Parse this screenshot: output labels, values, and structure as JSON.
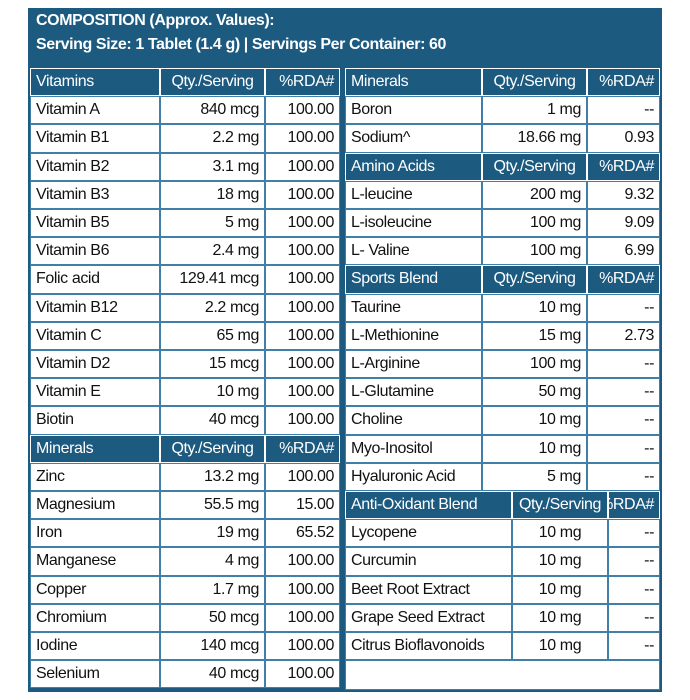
{
  "title": {
    "line1": "COMPOSITION (Approx. Values):",
    "line2": "Serving Size: 1 Tablet (1.4 g) | Servings Per Container: 60"
  },
  "left": [
    {
      "header": [
        "Vitamins",
        "Qty./Serving",
        "%RDA#"
      ],
      "rows": [
        [
          "Vitamin A",
          "840 mcg",
          "100.00"
        ],
        [
          "Vitamin B1",
          "2.2 mg",
          "100.00"
        ],
        [
          "Vitamin B2",
          "3.1 mg",
          "100.00"
        ],
        [
          "Vitamin B3",
          "18 mg",
          "100.00"
        ],
        [
          "Vitamin B5",
          "5 mg",
          "100.00"
        ],
        [
          "Vitamin B6",
          "2.4 mg",
          "100.00"
        ],
        [
          "Folic acid",
          "129.41 mcg",
          "100.00"
        ],
        [
          "Vitamin B12",
          "2.2 mcg",
          "100.00"
        ],
        [
          "Vitamin C",
          "65 mg",
          "100.00"
        ],
        [
          "Vitamin D2",
          "15 mcg",
          "100.00"
        ],
        [
          "Vitamin E",
          "10 mg",
          "100.00"
        ],
        [
          "Biotin",
          "40 mcg",
          "100.00"
        ]
      ]
    },
    {
      "header": [
        "Minerals",
        "Qty./Serving",
        "%RDA#"
      ],
      "rows": [
        [
          "Zinc",
          "13.2 mg",
          "100.00"
        ],
        [
          "Magnesium",
          "55.5 mg",
          "15.00"
        ],
        [
          "Iron",
          "19 mg",
          "65.52"
        ],
        [
          "Manganese",
          "4 mg",
          "100.00"
        ],
        [
          "Copper",
          "1.7 mg",
          "100.00"
        ],
        [
          "Chromium",
          "50 mcg",
          "100.00"
        ],
        [
          "Iodine",
          "140 mcg",
          "100.00"
        ],
        [
          "Selenium",
          "40 mcg",
          "100.00"
        ]
      ]
    }
  ],
  "right": [
    {
      "header": [
        "Minerals",
        "Qty./Serving",
        "%RDA#"
      ],
      "rows": [
        [
          "Boron",
          "1 mg",
          "--"
        ],
        [
          "Sodium^",
          "18.66 mg",
          "0.93"
        ]
      ]
    },
    {
      "header": [
        "Amino Acids",
        "Qty./Serving",
        "%RDA#"
      ],
      "rows": [
        [
          "L-leucine",
          "200 mg",
          "9.32"
        ],
        [
          "L-isoleucine",
          "100 mg",
          "9.09"
        ],
        [
          "L- Valine",
          "100 mg",
          "6.99"
        ]
      ]
    },
    {
      "header": [
        "Sports Blend",
        "Qty./Serving",
        "%RDA#"
      ],
      "rows": [
        [
          "Taurine",
          "10 mg",
          "--"
        ],
        [
          "L-Methionine",
          "15 mg",
          "2.73"
        ],
        [
          "L-Arginine",
          "100 mg",
          "--"
        ],
        [
          "L-Glutamine",
          "50 mg",
          "--"
        ],
        [
          "Choline",
          "10 mg",
          "--"
        ],
        [
          "Myo-Inositol",
          "10 mg",
          "--"
        ],
        [
          "Hyaluronic Acid",
          "5 mg",
          "--"
        ]
      ]
    },
    {
      "header": [
        "Anti-Oxidant Blend",
        "Qty./Serving",
        "%RDA#"
      ],
      "rows": [
        [
          "Lycopene",
          "10 mg",
          "--"
        ],
        [
          "Curcumin",
          "10 mg",
          "--"
        ],
        [
          "Beet Root Extract",
          "10 mg",
          "--"
        ],
        [
          "Grape Seed Extract",
          "10 mg",
          "--"
        ],
        [
          "Citrus Bioflavonoids",
          "10 mg",
          "--"
        ]
      ]
    }
  ]
}
